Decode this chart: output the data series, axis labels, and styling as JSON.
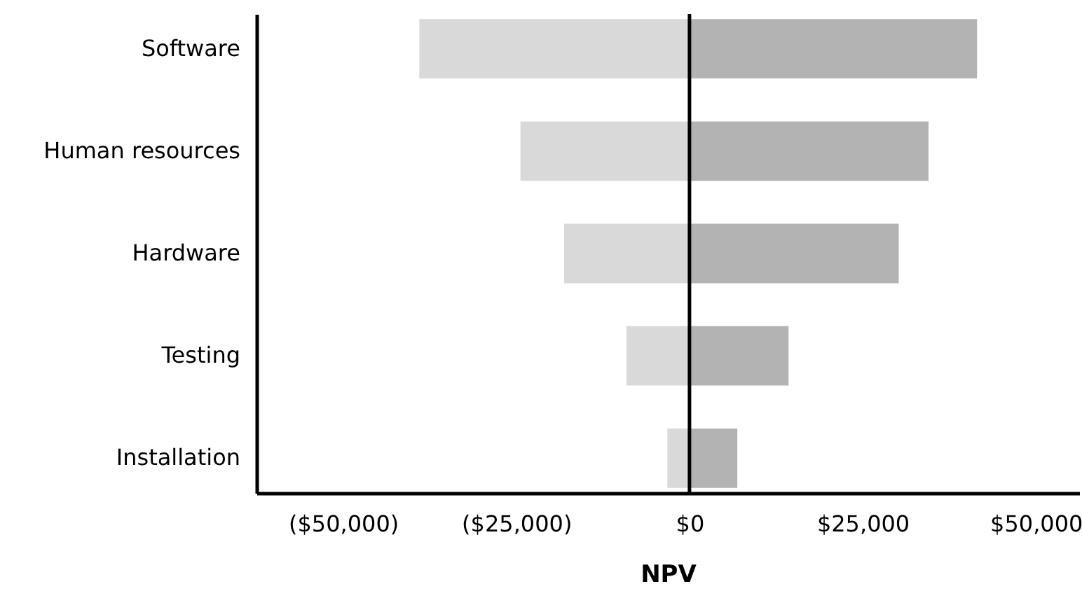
{
  "chart_data": {
    "type": "bar",
    "orientation": "horizontal",
    "stacked": true,
    "xlabel": "NPV",
    "categories": [
      "Software",
      "Human resources",
      "Hardware",
      "Testing",
      "Installation"
    ],
    "series": [
      {
        "color": "#d9d9d9",
        "values": [
          -39000,
          -24400,
          -18100,
          -9100,
          -3200
        ]
      },
      {
        "color": "#b3b3b3",
        "values": [
          41500,
          34500,
          30200,
          14300,
          6900
        ]
      }
    ],
    "xlim": [
      -62500,
      56250
    ],
    "xticks": [
      {
        "value": -50000,
        "label": "($50,000)"
      },
      {
        "value": -25000,
        "label": "($25,000)"
      },
      {
        "value": 0,
        "label": "$0"
      },
      {
        "value": 25000,
        "label": "$25,000"
      },
      {
        "value": 50000,
        "label": "$50,000"
      }
    ],
    "ref_lines": [
      {
        "axis": "x",
        "value": 0,
        "color": "#000000"
      }
    ]
  }
}
